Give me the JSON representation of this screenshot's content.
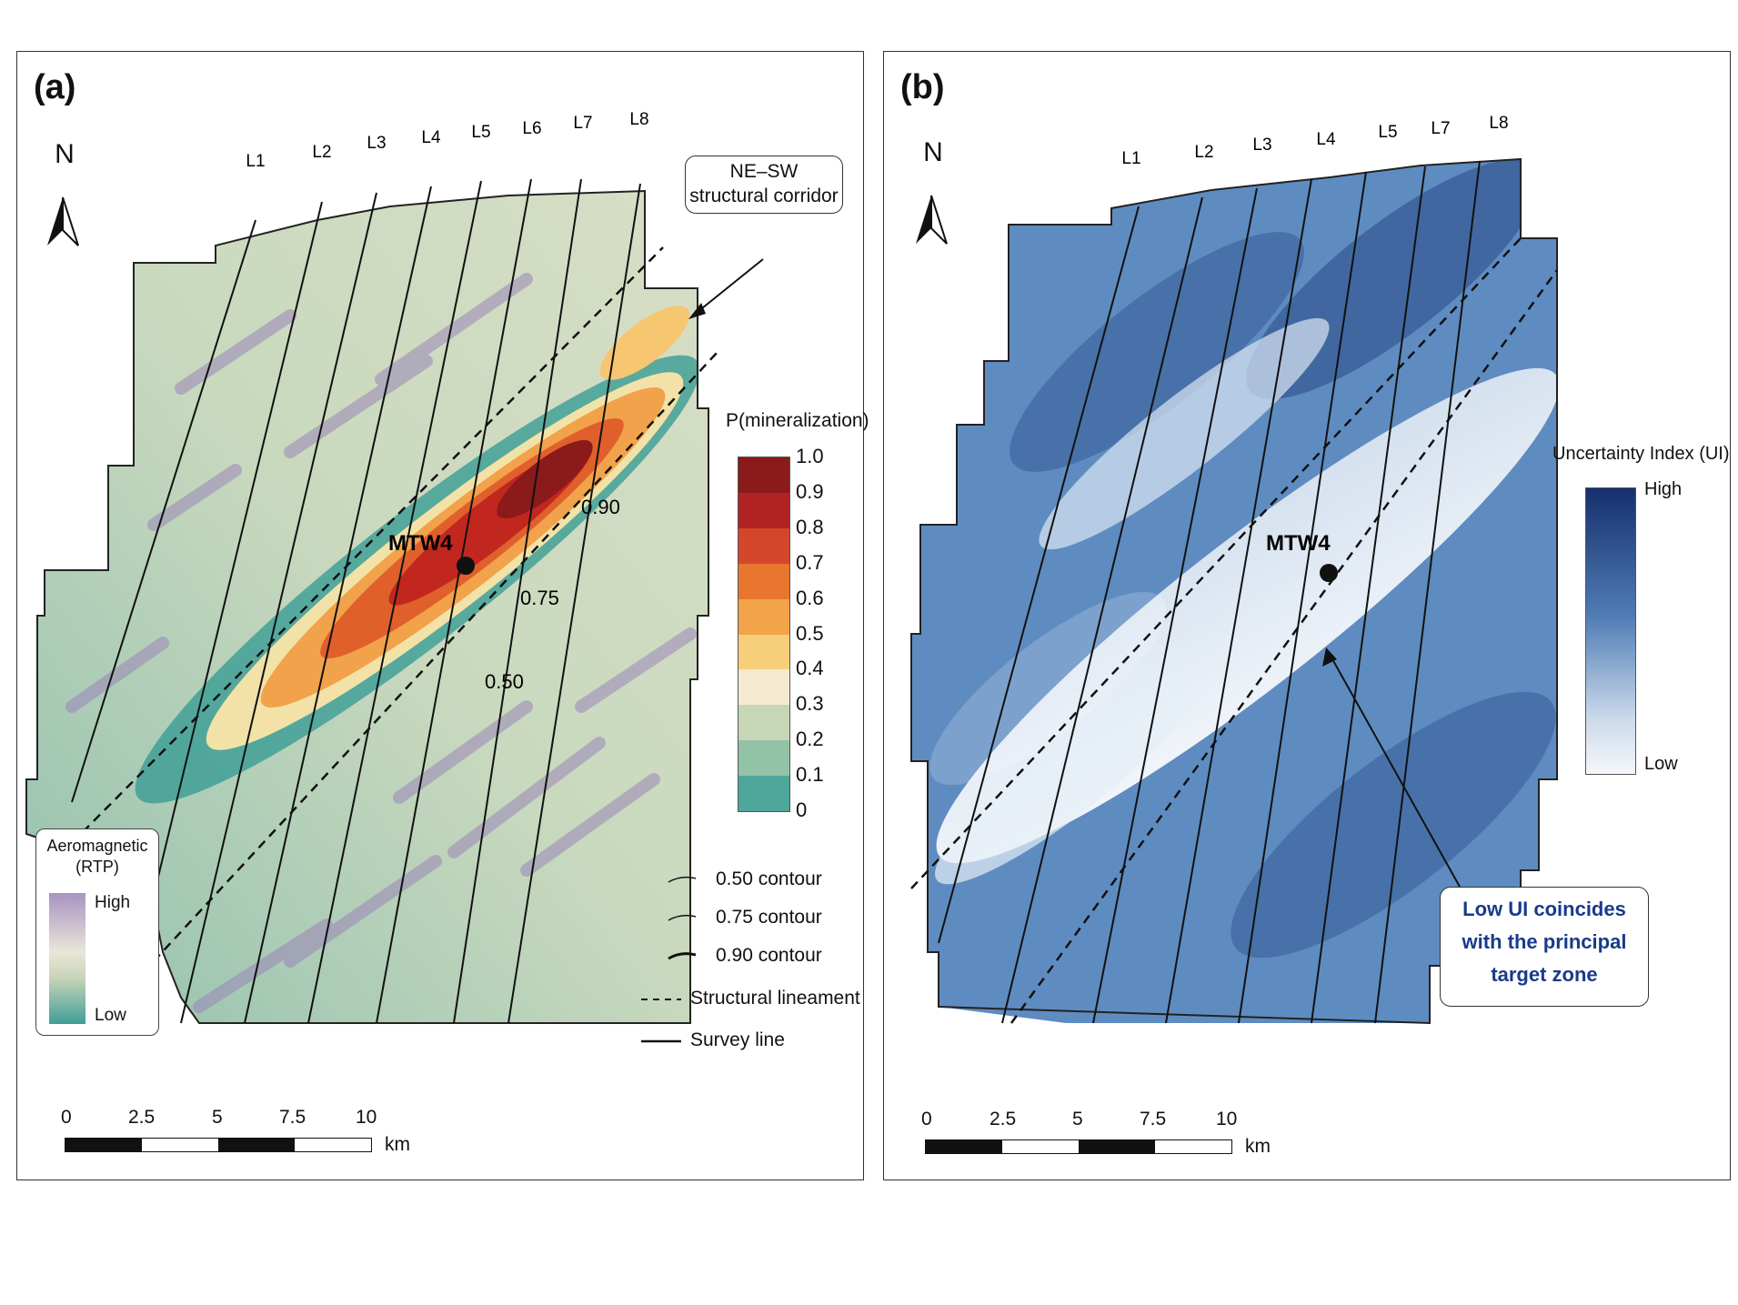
{
  "panel_a": {
    "label": "(a)",
    "north_label": "N",
    "survey_lines": [
      "L1",
      "L2",
      "L3",
      "L4",
      "L5",
      "L6",
      "L7",
      "L8"
    ],
    "callout": [
      "NE–SW",
      "structural corridor"
    ],
    "point_label": "MTW4",
    "contour_labels": [
      "0.90",
      "0.75",
      "0.50"
    ],
    "colorbar": {
      "title": "P(mineralization)",
      "ticks": [
        "1.0",
        "0.9",
        "0.8",
        "0.7",
        "0.6",
        "0.5",
        "0.4",
        "0.3",
        "0.2",
        "0.1",
        "0"
      ],
      "colors": [
        "#8b1a1a",
        "#b22222",
        "#d4462a",
        "#e8762e",
        "#f3a34a",
        "#f7cf7a",
        "#f4ead0",
        "#c6d6b6",
        "#93c3a6",
        "#4fa79c",
        "#1f8a8a"
      ]
    },
    "rtp_legend": {
      "title": [
        "Aeromagnetic",
        "(RTP)"
      ],
      "high": "High",
      "low": "Low"
    },
    "line_legend": [
      {
        "symbol": "thin",
        "label": "0.50 contour"
      },
      {
        "symbol": "thin",
        "label": "0.75 contour"
      },
      {
        "symbol": "thick",
        "label": "0.90 contour"
      },
      {
        "symbol": "dashed",
        "label": "Structural lineament"
      },
      {
        "symbol": "solid",
        "label": "Survey line"
      }
    ],
    "scalebar": {
      "ticks": [
        "0",
        "2.5",
        "5",
        "7.5",
        "10"
      ],
      "unit": "km"
    }
  },
  "panel_b": {
    "label": "(b)",
    "north_label": "N",
    "survey_lines": [
      "L1",
      "L2",
      "L3",
      "L4",
      "L5",
      "L7",
      "L8"
    ],
    "point_label": "MTW4",
    "colorbar": {
      "title": "Uncertainty Index (UI)",
      "high": "High",
      "low": "Low"
    },
    "callout": [
      "Low UI coincides",
      "with the principal",
      "target zone"
    ],
    "callout_color": "#1a3a8a",
    "scalebar": {
      "ticks": [
        "0",
        "2.5",
        "5",
        "7.5",
        "10"
      ],
      "unit": "km"
    }
  }
}
